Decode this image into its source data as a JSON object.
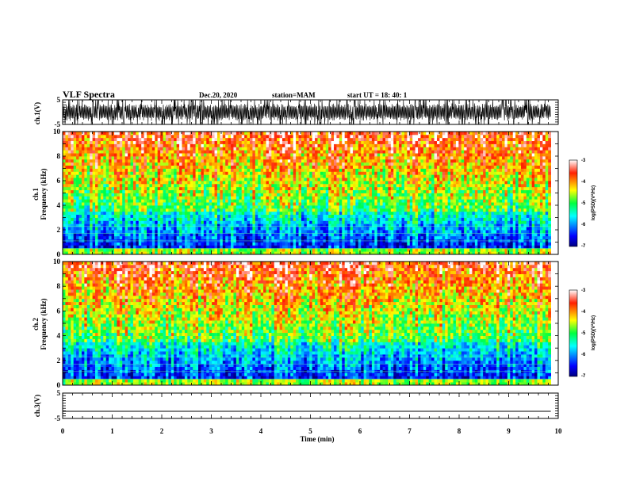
{
  "header": {
    "title": "VLF Spectra",
    "date": "Dec.20, 2020",
    "station": "station=MAM",
    "start": "start  UT =   18: 40: 1"
  },
  "chart_data": [
    {
      "type": "line",
      "name": "waveform-ch1",
      "ylabel": "ch.1(V)",
      "ylim": [
        -5,
        5
      ],
      "ytick_labels": [
        "5",
        "-5"
      ],
      "xlim": [
        0,
        10
      ],
      "note_values": "dense oscillating waveform spanning approx -5 to 5 V from 0 to 9.85 min"
    },
    {
      "type": "heatmap",
      "name": "spectrogram-ch1",
      "ylabel_lines": [
        "ch.1",
        "Frequency  (kHz)"
      ],
      "ylim": [
        0,
        10
      ],
      "ytick_labels": [
        "0",
        "2",
        "4",
        "6",
        "8",
        "10"
      ],
      "xlim": [
        0,
        10
      ],
      "data_x_extent": [
        0,
        9.85
      ],
      "colorbar": {
        "label": "log(PSD)(V²/Hz)",
        "range": [
          -7,
          -3
        ],
        "tick_labels": [
          "-3",
          "-4",
          "-5",
          "-6",
          "-7"
        ]
      }
    },
    {
      "type": "heatmap",
      "name": "spectrogram-ch2",
      "ylabel_lines": [
        "ch.2",
        "Frequency  (kHz)"
      ],
      "ylim": [
        0,
        10
      ],
      "ytick_labels": [
        "0",
        "2",
        "4",
        "6",
        "8",
        "10"
      ],
      "xlim": [
        0,
        10
      ],
      "data_x_extent": [
        0,
        9.85
      ],
      "colorbar": {
        "label": "log(PSD)(V²/Hz)",
        "range": [
          -7,
          -3
        ],
        "tick_labels": [
          "-3",
          "-4",
          "-5",
          "-6",
          "-7"
        ]
      }
    },
    {
      "type": "line",
      "name": "waveform-ch3",
      "ylabel": "ch.3(V)",
      "ylim": [
        -5,
        5
      ],
      "ytick_labels": [
        "5",
        "-5"
      ],
      "xlim": [
        0,
        10
      ],
      "x": [
        0,
        9.85
      ],
      "y": [
        -2.2,
        -2.2
      ]
    }
  ],
  "x_axis": {
    "label": "Time  (min)",
    "tick_labels": [
      "0",
      "1",
      "2",
      "3",
      "4",
      "5",
      "6",
      "7",
      "8",
      "9",
      "10"
    ]
  }
}
